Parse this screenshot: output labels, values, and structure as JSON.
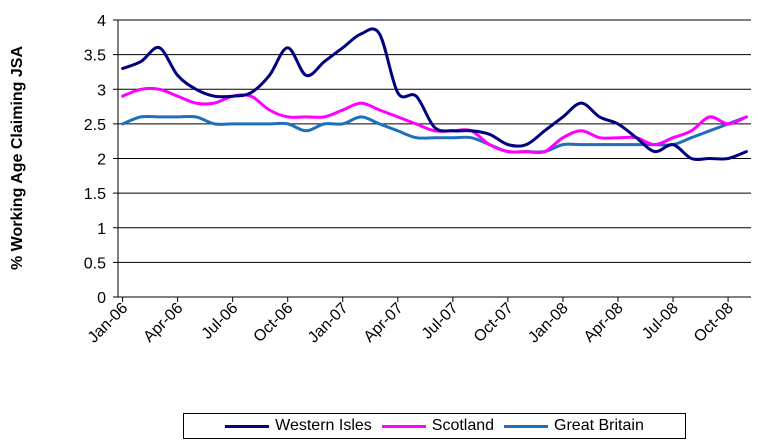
{
  "chart_data": {
    "type": "line",
    "title": "",
    "xlabel": "",
    "ylabel": "% Working Age Claiming JSA",
    "ylim": [
      0,
      4
    ],
    "yticks": [
      "0",
      "0.5",
      "1",
      "1.5",
      "2",
      "2.5",
      "3",
      "3.5",
      "4"
    ],
    "xticks": [
      "Jan-06",
      "Apr-06",
      "Jul-06",
      "Oct-06",
      "Jan-07",
      "Apr-07",
      "Jul-07",
      "Oct-07",
      "Jan-08",
      "Apr-08",
      "Jul-08",
      "Oct-08"
    ],
    "months": [
      "Jan-06",
      "Feb-06",
      "Mar-06",
      "Apr-06",
      "May-06",
      "Jun-06",
      "Jul-06",
      "Aug-06",
      "Sep-06",
      "Oct-06",
      "Nov-06",
      "Dec-06",
      "Jan-07",
      "Feb-07",
      "Mar-07",
      "Apr-07",
      "May-07",
      "Jun-07",
      "Jul-07",
      "Aug-07",
      "Sep-07",
      "Oct-07",
      "Nov-07",
      "Dec-07",
      "Jan-08",
      "Feb-08",
      "Mar-08",
      "Apr-08",
      "May-08",
      "Jun-08",
      "Jul-08",
      "Aug-08",
      "Sep-08",
      "Oct-08",
      "Nov-08"
    ],
    "grid": true,
    "legend_position": "bottom",
    "series": [
      {
        "name": "Western Isles",
        "color": "#000080",
        "values": [
          3.3,
          3.4,
          3.6,
          3.2,
          3.0,
          2.9,
          2.9,
          2.95,
          3.2,
          3.6,
          3.2,
          3.4,
          3.6,
          3.8,
          3.8,
          2.95,
          2.9,
          2.45,
          2.4,
          2.4,
          2.35,
          2.2,
          2.2,
          2.4,
          2.6,
          2.8,
          2.6,
          2.5,
          2.3,
          2.1,
          2.2,
          2.0,
          2.0,
          2.0,
          2.1
        ]
      },
      {
        "name": "Scotland",
        "color": "#ff00ff",
        "values": [
          2.9,
          3.0,
          3.0,
          2.9,
          2.8,
          2.8,
          2.9,
          2.9,
          2.7,
          2.6,
          2.6,
          2.6,
          2.7,
          2.8,
          2.7,
          2.6,
          2.5,
          2.4,
          2.4,
          2.4,
          2.2,
          2.1,
          2.1,
          2.1,
          2.3,
          2.4,
          2.3,
          2.3,
          2.3,
          2.2,
          2.3,
          2.4,
          2.6,
          2.5,
          2.6
        ]
      },
      {
        "name": "Great Britain",
        "color": "#1f6fbf",
        "values": [
          2.5,
          2.6,
          2.6,
          2.6,
          2.6,
          2.5,
          2.5,
          2.5,
          2.5,
          2.5,
          2.4,
          2.5,
          2.5,
          2.6,
          2.5,
          2.4,
          2.3,
          2.3,
          2.3,
          2.3,
          2.2,
          2.1,
          2.1,
          2.1,
          2.2,
          2.2,
          2.2,
          2.2,
          2.2,
          2.2,
          2.2,
          2.3,
          2.4,
          2.5,
          2.6
        ]
      }
    ]
  }
}
